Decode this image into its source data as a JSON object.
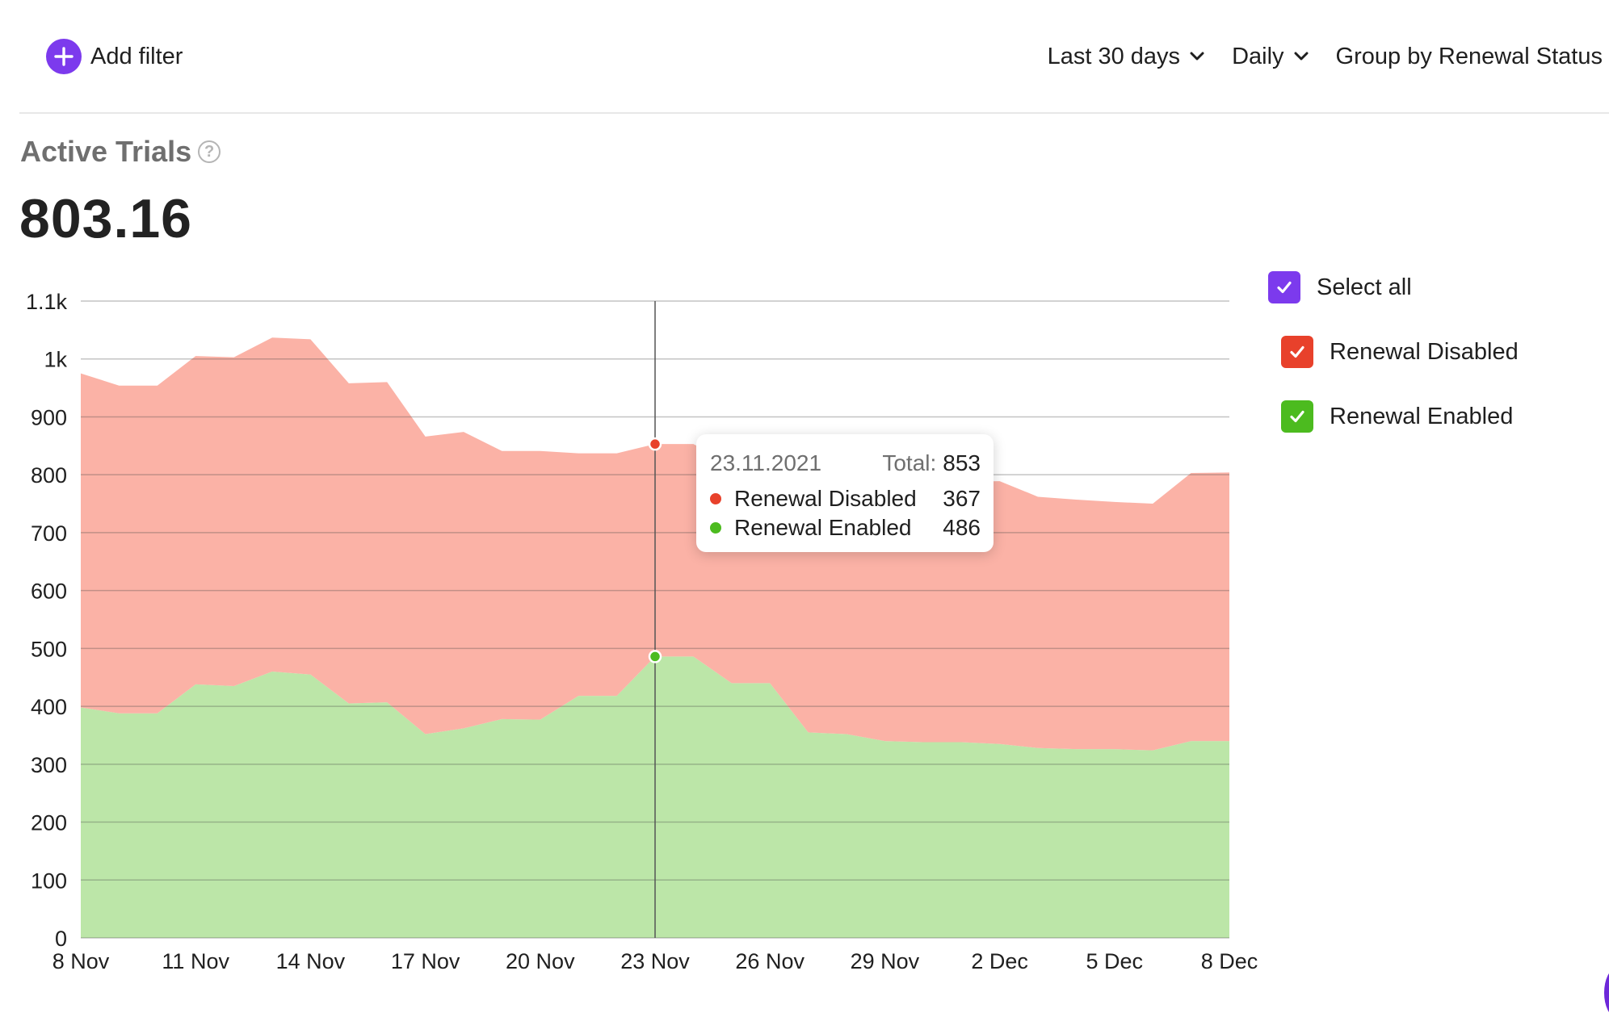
{
  "toolbar": {
    "add_filter_label": "Add filter",
    "period_label": "Last 30 days",
    "interval_label": "Daily",
    "group_label": "Group by Renewal Status"
  },
  "metric": {
    "title": "Active Trials",
    "value": "803.16"
  },
  "legend": {
    "select_all": "Select all",
    "items": [
      {
        "label": "Renewal Disabled",
        "color": "#e8412b",
        "checked": true
      },
      {
        "label": "Renewal Enabled",
        "color": "#4cbb1f",
        "checked": true
      }
    ],
    "select_all_color": "#7c3aed"
  },
  "tooltip": {
    "date": "23.11.2021",
    "total_label": "Total:",
    "total_value": "853",
    "rows": [
      {
        "name": "Renewal Disabled",
        "value": "367",
        "color": "#e8412b"
      },
      {
        "name": "Renewal Enabled",
        "value": "486",
        "color": "#4cbb1f"
      }
    ]
  },
  "chart_data": {
    "type": "area",
    "stacked": true,
    "x": [
      "8 Nov",
      "9 Nov",
      "10 Nov",
      "11 Nov",
      "12 Nov",
      "13 Nov",
      "14 Nov",
      "15 Nov",
      "16 Nov",
      "17 Nov",
      "18 Nov",
      "19 Nov",
      "20 Nov",
      "21 Nov",
      "22 Nov",
      "23 Nov",
      "24 Nov",
      "25 Nov",
      "26 Nov",
      "27 Nov",
      "28 Nov",
      "29 Nov",
      "30 Nov",
      "1 Dec",
      "2 Dec",
      "3 Dec",
      "4 Dec",
      "5 Dec",
      "6 Dec",
      "7 Dec",
      "8 Dec"
    ],
    "x_tick_labels": [
      "8 Nov",
      "11 Nov",
      "14 Nov",
      "17 Nov",
      "20 Nov",
      "23 Nov",
      "26 Nov",
      "29 Nov",
      "2 Dec",
      "5 Dec",
      "8 Dec"
    ],
    "y_tick_labels": [
      "0",
      "100",
      "200",
      "300",
      "400",
      "500",
      "600",
      "700",
      "800",
      "900",
      "1k",
      "1.1k"
    ],
    "ylim": [
      0,
      1100
    ],
    "grid": true,
    "legend_position": "right",
    "highlight_index": 15,
    "series": [
      {
        "name": "Renewal Enabled",
        "color": "#bce6a8",
        "values": [
          398,
          388,
          388,
          438,
          435,
          460,
          455,
          405,
          407,
          352,
          362,
          378,
          377,
          418,
          418,
          486,
          486,
          440,
          440,
          355,
          352,
          340,
          338,
          338,
          335,
          328,
          326,
          326,
          324,
          340,
          340
        ]
      },
      {
        "name": "Renewal Disabled",
        "color": "#fbb2a6",
        "values": [
          577,
          566,
          566,
          567,
          568,
          577,
          579,
          553,
          553,
          514,
          512,
          463,
          464,
          419,
          419,
          367,
          367,
          379,
          379,
          436,
          439,
          448,
          448,
          450,
          454,
          434,
          431,
          427,
          426,
          463,
          464
        ]
      }
    ]
  }
}
